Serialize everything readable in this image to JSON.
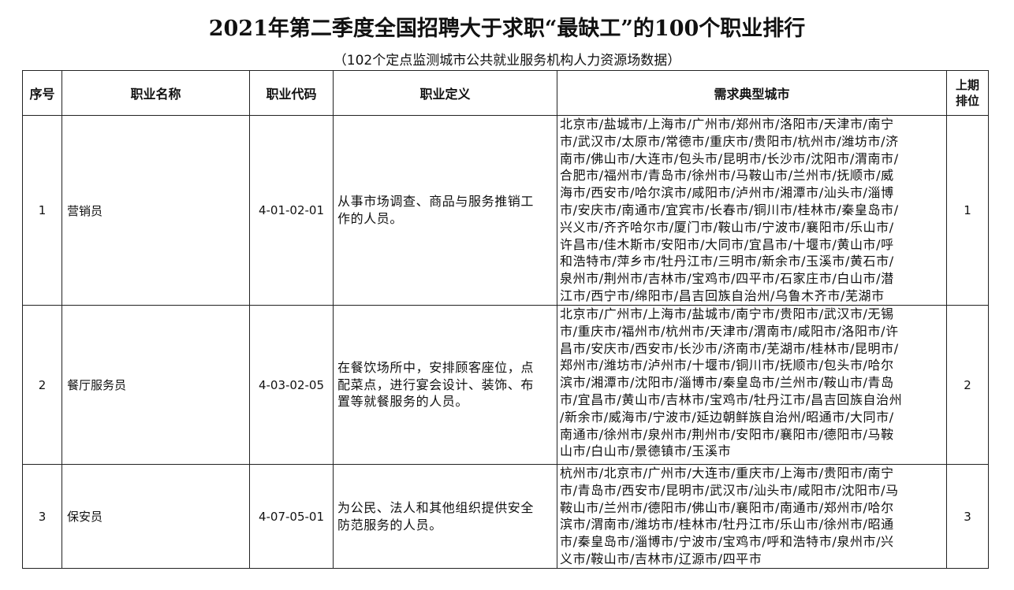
{
  "title": "2021年第二季度全国招聘大于求职“最缺工”的100个职业排行",
  "subtitle": "（102个定点监测城市公共就业服务机构人力资源场数据）",
  "headers": {
    "no": "序号",
    "name": "职业名称",
    "code": "职业代码",
    "definition": "职业定义",
    "cities": "需求典型城市",
    "prev_rank": "上期排位"
  },
  "rows": [
    {
      "no": "1",
      "name": "营销员",
      "code": "4-01-02-01",
      "definition": [
        "从事市场调查、商品与服务推销工",
        "作的人员。"
      ],
      "cities": [
        "北京市/盐城市/上海市/广州市/郑州市/洛阳市/天津市/南宁",
        "市/武汉市/太原市/常德市/重庆市/贵阳市/杭州市/潍坊市/济",
        "南市/佛山市/大连市/包头市/昆明市/长沙市/沈阳市/渭南市/",
        "合肥市/福州市/青岛市/徐州市/马鞍山市/兰州市/抚顺市/威",
        "海市/西安市/哈尔滨市/咸阳市/泸州市/湘潭市/汕头市/淄博",
        "市/安庆市/南通市/宜宾市/长春市/铜川市/桂林市/秦皇岛市/",
        "兴义市/齐齐哈尔市/厦门市/鞍山市/宁波市/襄阳市/乐山市/",
        "许昌市/佳木斯市/安阳市/大同市/宜昌市/十堰市/黄山市/呼",
        "和浩特市/萍乡市/牡丹江市/三明市/新余市/玉溪市/黄石市/",
        "泉州市/荆州市/吉林市/宝鸡市/四平市/石家庄市/白山市/潜",
        "江市/西宁市/绵阳市/昌吉回族自治州/乌鲁木齐市/芜湖市"
      ],
      "prev_rank": "1"
    },
    {
      "no": "2",
      "name": "餐厅服务员",
      "code": "4-03-02-05",
      "definition": [
        "在餐饮场所中，安排顾客座位，点",
        "配菜点，进行宴会设计、装饰、布",
        "置等就餐服务的人员。"
      ],
      "cities": [
        "北京市/广州市/上海市/盐城市/南宁市/贵阳市/武汉市/无锡",
        "市/重庆市/福州市/杭州市/天津市/渭南市/咸阳市/洛阳市/许",
        "昌市/安庆市/西安市/长沙市/济南市/芜湖市/桂林市/昆明市/",
        "郑州市/潍坊市/泸州市/十堰市/铜川市/抚顺市/包头市/哈尔",
        "滨市/湘潭市/沈阳市/淄博市/秦皇岛市/兰州市/鞍山市/青岛",
        "市/宜昌市/黄山市/吉林市/宝鸡市/牡丹江市/昌吉回族自治州",
        "/新余市/威海市/宁波市/延边朝鲜族自治州/昭通市/大同市/",
        "南通市/徐州市/泉州市/荆州市/安阳市/襄阳市/德阳市/马鞍",
        "山市/白山市/景德镇市/玉溪市"
      ],
      "prev_rank": "2"
    },
    {
      "no": "3",
      "name": "保安员",
      "code": "4-07-05-01",
      "definition": [
        "为公民、法人和其他组织提供安全",
        "防范服务的人员。"
      ],
      "cities": [
        "杭州市/北京市/广州市/大连市/重庆市/上海市/贵阳市/南宁",
        "市/青岛市/西安市/昆明市/武汉市/汕头市/咸阳市/沈阳市/马",
        "鞍山市/兰州市/德阳市/佛山市/襄阳市/南通市/郑州市/哈尔",
        "滨市/渭南市/潍坊市/桂林市/牡丹江市/乐山市/徐州市/昭通",
        "市/秦皇岛市/淄博市/宁波市/宝鸡市/呼和浩特市/泉州市/兴",
        "义市/鞍山市/吉林市/辽源市/四平市"
      ],
      "prev_rank": "3"
    }
  ]
}
